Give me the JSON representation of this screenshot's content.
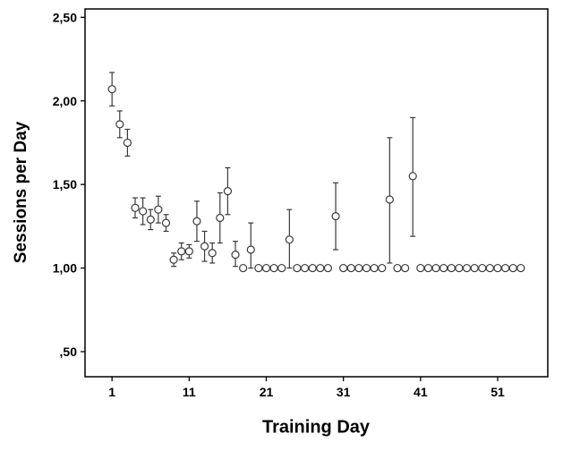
{
  "chart_data": {
    "type": "scatter",
    "subtype": "errorbar",
    "title": "",
    "xlabel": "Training Day",
    "ylabel": "Sessions per Day",
    "xlim": [
      -2.5,
      57.5
    ],
    "ylim": [
      0.35,
      2.55
    ],
    "x_ticks": [
      1,
      11,
      21,
      31,
      41,
      51
    ],
    "x_tick_labels": [
      "1",
      "11",
      "21",
      "31",
      "41",
      "51"
    ],
    "y_ticks": [
      0.5,
      1.0,
      1.5,
      2.0,
      2.5
    ],
    "y_tick_labels": [
      ",50",
      "1,00",
      "1,50",
      "2,00",
      "2,50"
    ],
    "grid": false,
    "legend": "none",
    "marker": "open-circle",
    "marker_color": "#3a3a3a",
    "frame_color": "#000000",
    "points": [
      {
        "x": 1,
        "y": 2.07,
        "lo": 1.97,
        "hi": 2.17
      },
      {
        "x": 2,
        "y": 1.86,
        "lo": 1.78,
        "hi": 1.94
      },
      {
        "x": 3,
        "y": 1.75,
        "lo": 1.67,
        "hi": 1.83
      },
      {
        "x": 4,
        "y": 1.36,
        "lo": 1.3,
        "hi": 1.42
      },
      {
        "x": 5,
        "y": 1.34,
        "lo": 1.26,
        "hi": 1.42
      },
      {
        "x": 6,
        "y": 1.29,
        "lo": 1.23,
        "hi": 1.35
      },
      {
        "x": 7,
        "y": 1.35,
        "lo": 1.27,
        "hi": 1.43
      },
      {
        "x": 8,
        "y": 1.27,
        "lo": 1.22,
        "hi": 1.32
      },
      {
        "x": 9,
        "y": 1.05,
        "lo": 1.01,
        "hi": 1.09
      },
      {
        "x": 10,
        "y": 1.1,
        "lo": 1.05,
        "hi": 1.15
      },
      {
        "x": 11,
        "y": 1.1,
        "lo": 1.06,
        "hi": 1.14
      },
      {
        "x": 12,
        "y": 1.28,
        "lo": 1.16,
        "hi": 1.4
      },
      {
        "x": 13,
        "y": 1.13,
        "lo": 1.04,
        "hi": 1.22
      },
      {
        "x": 14,
        "y": 1.09,
        "lo": 1.03,
        "hi": 1.15
      },
      {
        "x": 15,
        "y": 1.3,
        "lo": 1.15,
        "hi": 1.45
      },
      {
        "x": 16,
        "y": 1.46,
        "lo": 1.32,
        "hi": 1.6
      },
      {
        "x": 17,
        "y": 1.08,
        "lo": 1.01,
        "hi": 1.16
      },
      {
        "x": 18,
        "y": 1.0,
        "lo": 1.0,
        "hi": 1.0
      },
      {
        "x": 19,
        "y": 1.11,
        "lo": 1.0,
        "hi": 1.27
      },
      {
        "x": 20,
        "y": 1.0,
        "lo": 1.0,
        "hi": 1.0
      },
      {
        "x": 21,
        "y": 1.0,
        "lo": 1.0,
        "hi": 1.0
      },
      {
        "x": 22,
        "y": 1.0,
        "lo": 1.0,
        "hi": 1.0
      },
      {
        "x": 23,
        "y": 1.0,
        "lo": 1.0,
        "hi": 1.0
      },
      {
        "x": 24,
        "y": 1.17,
        "lo": 1.0,
        "hi": 1.35
      },
      {
        "x": 25,
        "y": 1.0,
        "lo": 1.0,
        "hi": 1.0
      },
      {
        "x": 26,
        "y": 1.0,
        "lo": 1.0,
        "hi": 1.0
      },
      {
        "x": 27,
        "y": 1.0,
        "lo": 1.0,
        "hi": 1.0
      },
      {
        "x": 28,
        "y": 1.0,
        "lo": 1.0,
        "hi": 1.0
      },
      {
        "x": 29,
        "y": 1.0,
        "lo": 1.0,
        "hi": 1.0
      },
      {
        "x": 30,
        "y": 1.31,
        "lo": 1.11,
        "hi": 1.51
      },
      {
        "x": 31,
        "y": 1.0,
        "lo": 1.0,
        "hi": 1.0
      },
      {
        "x": 32,
        "y": 1.0,
        "lo": 1.0,
        "hi": 1.0
      },
      {
        "x": 33,
        "y": 1.0,
        "lo": 1.0,
        "hi": 1.0
      },
      {
        "x": 34,
        "y": 1.0,
        "lo": 1.0,
        "hi": 1.0
      },
      {
        "x": 35,
        "y": 1.0,
        "lo": 1.0,
        "hi": 1.0
      },
      {
        "x": 36,
        "y": 1.0,
        "lo": 1.0,
        "hi": 1.0
      },
      {
        "x": 37,
        "y": 1.41,
        "lo": 1.03,
        "hi": 1.78
      },
      {
        "x": 38,
        "y": 1.0,
        "lo": 1.0,
        "hi": 1.0
      },
      {
        "x": 39,
        "y": 1.0,
        "lo": 1.0,
        "hi": 1.0
      },
      {
        "x": 40,
        "y": 1.55,
        "lo": 1.19,
        "hi": 1.9
      },
      {
        "x": 41,
        "y": 1.0,
        "lo": 1.0,
        "hi": 1.0
      },
      {
        "x": 42,
        "y": 1.0,
        "lo": 1.0,
        "hi": 1.0
      },
      {
        "x": 43,
        "y": 1.0,
        "lo": 1.0,
        "hi": 1.0
      },
      {
        "x": 44,
        "y": 1.0,
        "lo": 1.0,
        "hi": 1.0
      },
      {
        "x": 45,
        "y": 1.0,
        "lo": 1.0,
        "hi": 1.0
      },
      {
        "x": 46,
        "y": 1.0,
        "lo": 1.0,
        "hi": 1.0
      },
      {
        "x": 47,
        "y": 1.0,
        "lo": 1.0,
        "hi": 1.0
      },
      {
        "x": 48,
        "y": 1.0,
        "lo": 1.0,
        "hi": 1.0
      },
      {
        "x": 49,
        "y": 1.0,
        "lo": 1.0,
        "hi": 1.0
      },
      {
        "x": 50,
        "y": 1.0,
        "lo": 1.0,
        "hi": 1.0
      },
      {
        "x": 51,
        "y": 1.0,
        "lo": 1.0,
        "hi": 1.0
      },
      {
        "x": 52,
        "y": 1.0,
        "lo": 1.0,
        "hi": 1.0
      },
      {
        "x": 53,
        "y": 1.0,
        "lo": 1.0,
        "hi": 1.0
      },
      {
        "x": 54,
        "y": 1.0,
        "lo": 1.0,
        "hi": 1.0
      }
    ]
  }
}
